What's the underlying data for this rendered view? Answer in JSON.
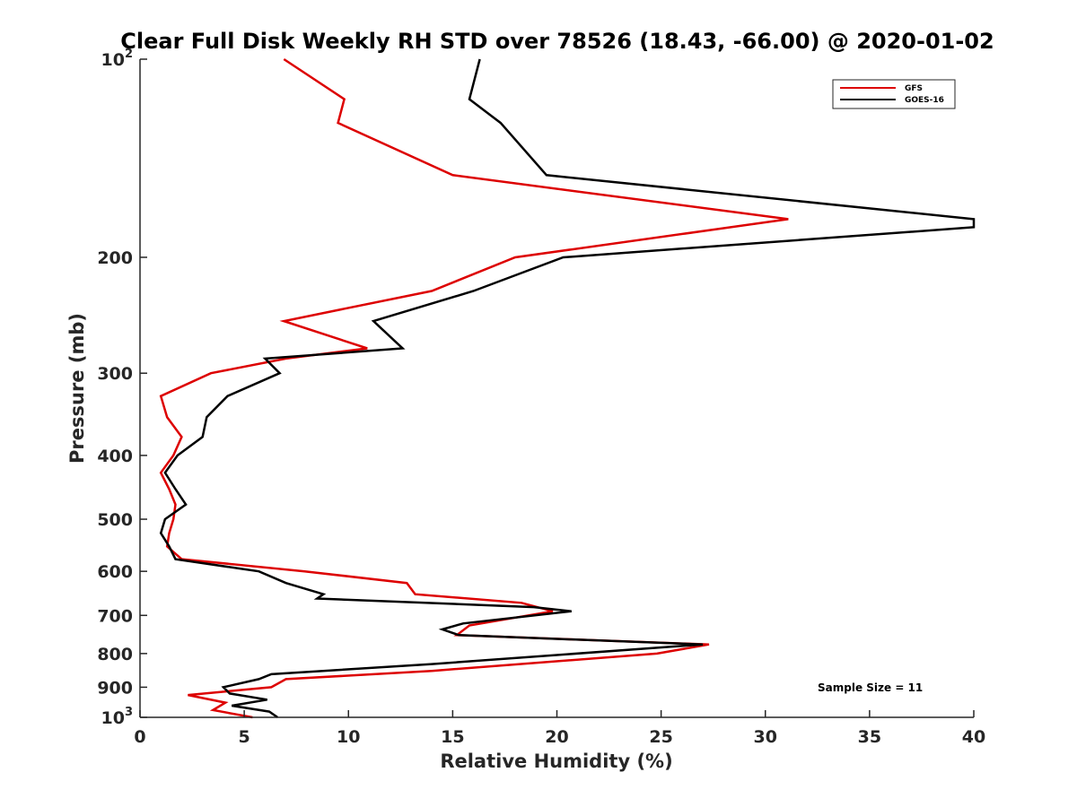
{
  "chart_data": {
    "type": "line",
    "title": "Clear Full Disk Weekly RH STD over 78526 (18.43, -66.00) @ 2020-01-02",
    "xlabel": "Relative Humidity (%)",
    "ylabel": "Pressure (mb)",
    "xlim": [
      0,
      40
    ],
    "ylim": [
      100,
      1000
    ],
    "yscale": "log",
    "y_reversed": true,
    "grid": false,
    "legend_position": "top-right",
    "x_ticks": [
      "0",
      "5",
      "10",
      "15",
      "20",
      "25",
      "30",
      "35",
      "40"
    ],
    "y_ticks": [
      {
        "value": 100,
        "base": "10",
        "exp": "2"
      },
      {
        "value": 200,
        "label": "200"
      },
      {
        "value": 300,
        "label": "300"
      },
      {
        "value": 400,
        "label": "400"
      },
      {
        "value": 500,
        "label": "500"
      },
      {
        "value": 600,
        "label": "600"
      },
      {
        "value": 700,
        "label": "700"
      },
      {
        "value": 800,
        "label": "800"
      },
      {
        "value": 900,
        "label": "900"
      },
      {
        "value": 1000,
        "base": "10",
        "exp": "3"
      }
    ],
    "series": [
      {
        "name": "GFS",
        "color": "#dd0000",
        "points": [
          [
            6.9,
            100
          ],
          [
            9.8,
            115
          ],
          [
            9.5,
            125
          ],
          [
            15.0,
            150
          ],
          [
            31.1,
            175
          ],
          [
            18.0,
            200
          ],
          [
            14.0,
            225
          ],
          [
            6.9,
            250
          ],
          [
            10.9,
            275
          ],
          [
            7.0,
            285
          ],
          [
            3.4,
            300
          ],
          [
            1.0,
            325
          ],
          [
            1.3,
            350
          ],
          [
            2.0,
            375
          ],
          [
            1.6,
            400
          ],
          [
            1.0,
            425
          ],
          [
            1.4,
            450
          ],
          [
            1.7,
            475
          ],
          [
            1.6,
            500
          ],
          [
            1.4,
            525
          ],
          [
            1.3,
            550
          ],
          [
            2.0,
            575
          ],
          [
            7.9,
            600
          ],
          [
            12.8,
            625
          ],
          [
            13.2,
            650
          ],
          [
            18.3,
            670
          ],
          [
            19.8,
            690
          ],
          [
            15.8,
            725
          ],
          [
            15.2,
            750
          ],
          [
            27.3,
            775
          ],
          [
            24.8,
            800
          ],
          [
            14.0,
            850
          ],
          [
            7.0,
            875
          ],
          [
            6.3,
            900
          ],
          [
            2.3,
            925
          ],
          [
            4.1,
            950
          ],
          [
            3.5,
            975
          ],
          [
            5.4,
            1000
          ]
        ]
      },
      {
        "name": "GOES-16",
        "color": "#000000",
        "points": [
          [
            16.3,
            100
          ],
          [
            15.8,
            115
          ],
          [
            17.3,
            125
          ],
          [
            19.5,
            150
          ],
          [
            40.0,
            175
          ],
          [
            40.0,
            180
          ],
          [
            20.3,
            200
          ],
          [
            16.0,
            225
          ],
          [
            11.2,
            250
          ],
          [
            12.6,
            275
          ],
          [
            6.0,
            285
          ],
          [
            6.7,
            300
          ],
          [
            4.2,
            325
          ],
          [
            3.2,
            350
          ],
          [
            3.0,
            375
          ],
          [
            1.8,
            400
          ],
          [
            1.2,
            425
          ],
          [
            1.7,
            450
          ],
          [
            2.2,
            475
          ],
          [
            1.2,
            500
          ],
          [
            1.0,
            525
          ],
          [
            1.4,
            550
          ],
          [
            1.7,
            575
          ],
          [
            5.7,
            600
          ],
          [
            7.0,
            625
          ],
          [
            8.8,
            650
          ],
          [
            8.5,
            660
          ],
          [
            18.9,
            680
          ],
          [
            20.7,
            690
          ],
          [
            15.5,
            720
          ],
          [
            14.5,
            735
          ],
          [
            15.3,
            750
          ],
          [
            27.0,
            775
          ],
          [
            14.0,
            830
          ],
          [
            6.3,
            860
          ],
          [
            5.7,
            875
          ],
          [
            4.0,
            900
          ],
          [
            4.3,
            920
          ],
          [
            6.1,
            940
          ],
          [
            4.4,
            960
          ],
          [
            6.2,
            980
          ],
          [
            6.6,
            1000
          ]
        ]
      }
    ],
    "annotation": "Sample Size = 11"
  }
}
